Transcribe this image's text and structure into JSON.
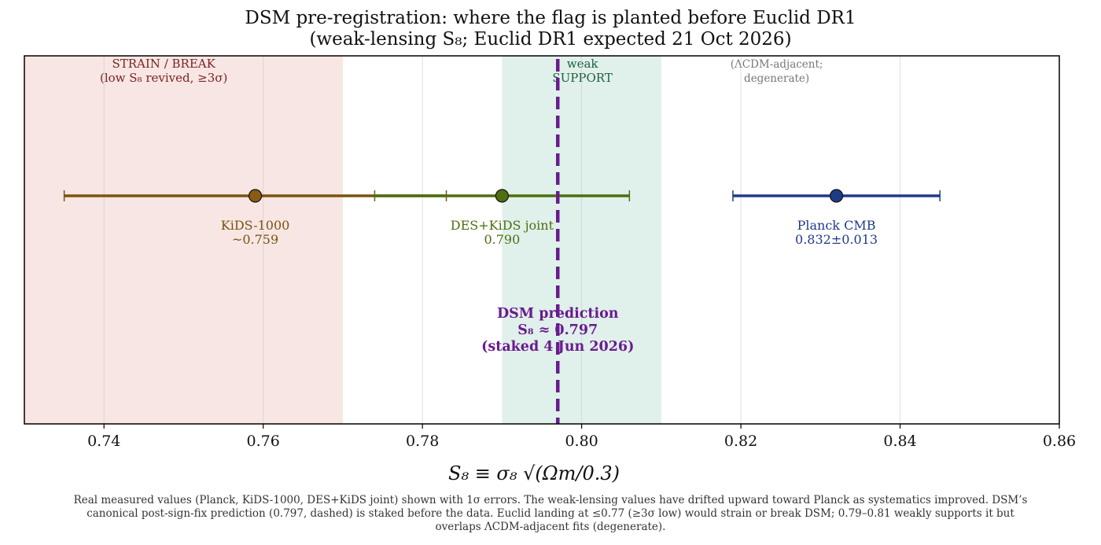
{
  "title_line1": "DSM pre-registration: where the flag is planted before Euclid DR1",
  "title_line2": "(weak-lensing S₈; Euclid DR1 expected 21 Oct 2026)",
  "chart_data": {
    "type": "scatter",
    "xlabel": "S₈ ≡ σ₈ √(Ωm/0.3)",
    "xlim": [
      0.73,
      0.86
    ],
    "xticks": [
      0.74,
      0.76,
      0.78,
      0.8,
      0.82,
      0.84,
      0.86
    ],
    "xtick_labels": [
      "0.74",
      "0.76",
      "0.78",
      "0.80",
      "0.82",
      "0.84",
      "0.86"
    ],
    "grid": true,
    "regions": [
      {
        "name": "strain",
        "x0": 0.73,
        "x1": 0.77,
        "color": "#f3d8d4",
        "label_lines": [
          "STRAIN / BREAK",
          "(low S₈ revived, ≥3σ)"
        ],
        "label_color": "#7a2323"
      },
      {
        "name": "support",
        "x0": 0.79,
        "x1": 0.81,
        "color": "#cfe8de",
        "label_lines": [
          "weak",
          "SUPPORT"
        ],
        "label_color": "#1f5f3a"
      },
      {
        "name": "lcdm",
        "x0": 0.81,
        "x1": 0.86,
        "color": null,
        "label_lines": [
          "(ΛCDM-adjacent;",
          "degenerate)"
        ],
        "label_color": "#777777"
      }
    ],
    "series": [
      {
        "name": "KiDS-1000",
        "x": 0.759,
        "err_low": 0.024,
        "err_high": 0.024,
        "color": "#7a5310",
        "marker_color": "#8b5a14",
        "label_lines": [
          "KiDS-1000",
          "~0.759"
        ]
      },
      {
        "name": "DES+KiDS joint",
        "x": 0.79,
        "err_low": 0.016,
        "err_high": 0.016,
        "color": "#4e6e10",
        "marker_color": "#4f6e10",
        "label_lines": [
          "DES+KiDS joint",
          "0.790"
        ]
      },
      {
        "name": "Planck CMB",
        "x": 0.832,
        "err_low": 0.013,
        "err_high": 0.013,
        "color": "#1f3b88",
        "marker_color": "#1f3b88",
        "label_lines": [
          "Planck CMB",
          "0.832±0.013"
        ]
      }
    ],
    "prediction": {
      "x": 0.797,
      "color": "#6a1b8f",
      "label_lines": [
        "DSM prediction",
        "S₈ ≈ 0.797",
        "(staked 4 Jun 2026)"
      ]
    }
  },
  "caption_lines": [
    "Real measured values (Planck, KiDS-1000, DES+KiDS joint) shown with 1σ errors. The weak-lensing values have drifted upward toward Planck as systematics improved. DSM’s",
    "canonical post-sign-fix prediction (0.797, dashed) is staked before the data. Euclid landing at ≤0.77 (≥3σ low) would strain or break DSM; 0.79–0.81 weakly supports it but",
    "overlaps ΛCDM-adjacent fits (degenerate)."
  ]
}
